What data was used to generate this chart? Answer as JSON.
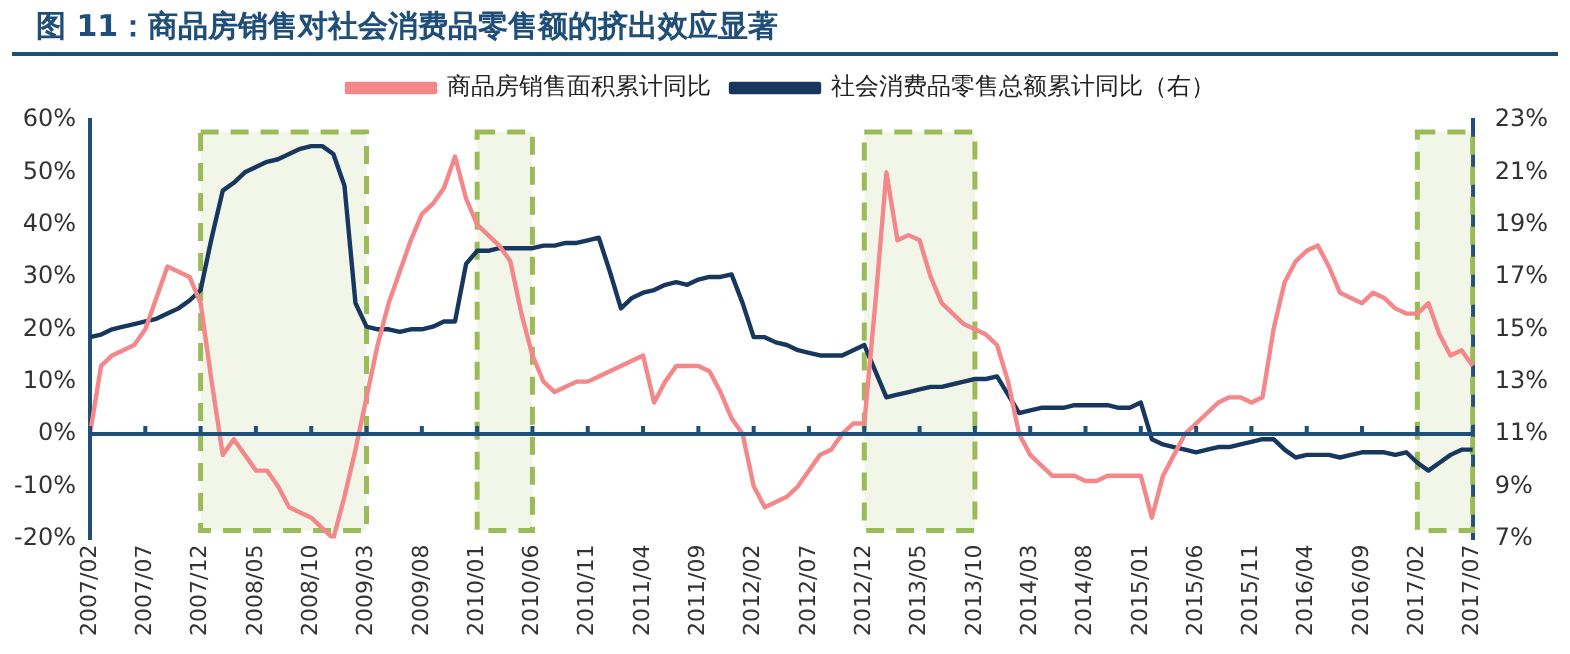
{
  "chart_data": {
    "type": "line",
    "title": "图 11：商品房销售对社会消费品零售额的挤出效应显著",
    "categories": [
      "2007/02",
      null,
      null,
      null,
      null,
      "2007/07",
      null,
      null,
      null,
      null,
      "2007/12",
      null,
      null,
      null,
      null,
      "2008/05",
      null,
      null,
      null,
      null,
      "2008/10",
      null,
      null,
      null,
      null,
      "2009/03",
      null,
      null,
      null,
      null,
      "2009/08",
      null,
      null,
      null,
      null,
      "2010/01",
      null,
      null,
      null,
      null,
      "2010/06",
      null,
      null,
      null,
      null,
      "2010/11",
      null,
      null,
      null,
      null,
      "2011/04",
      null,
      null,
      null,
      null,
      "2011/09",
      null,
      null,
      null,
      null,
      "2012/02",
      null,
      null,
      null,
      null,
      "2012/07",
      null,
      null,
      null,
      null,
      "2012/12",
      null,
      null,
      null,
      null,
      "2013/05",
      null,
      null,
      null,
      null,
      "2013/10",
      null,
      null,
      null,
      null,
      "2014/03",
      null,
      null,
      null,
      null,
      "2014/08",
      null,
      null,
      null,
      null,
      "2015/01",
      null,
      null,
      null,
      null,
      "2015/06",
      null,
      null,
      null,
      null,
      "2015/11",
      null,
      null,
      null,
      null,
      "2016/04",
      null,
      null,
      null,
      null,
      "2016/09",
      null,
      null,
      null,
      null,
      "2017/02",
      null,
      null,
      null,
      null,
      "2017/07"
    ],
    "series": [
      {
        "name": "商品房销售面积累计同比",
        "color": "#f4878a",
        "values": [
          0,
          13,
          15,
          16,
          17,
          20,
          26,
          32,
          31,
          30,
          25,
          10,
          -4,
          -1,
          -4,
          -7,
          -7,
          -10,
          -14,
          -15,
          -16,
          -18,
          -20,
          -12,
          -3,
          7,
          17,
          25,
          31,
          37,
          42,
          44,
          47,
          53,
          45,
          40,
          38,
          36,
          33,
          23,
          15,
          10,
          8,
          9,
          10,
          10,
          11,
          12,
          13,
          14,
          15,
          6,
          10,
          13,
          13,
          13,
          12,
          8,
          3,
          0,
          -10,
          -14,
          -13,
          -12,
          -10,
          -7,
          -4,
          -3,
          0,
          2,
          2,
          25,
          50,
          37,
          38,
          37,
          30,
          25,
          23,
          21,
          20,
          19,
          17,
          10,
          0,
          -4,
          -6,
          -8,
          -8,
          -8,
          -9,
          -9,
          -8,
          -8,
          -8,
          -8,
          -16,
          -8,
          -4,
          0,
          2,
          4,
          6,
          7,
          7,
          6,
          7,
          20,
          29,
          33,
          35,
          36,
          32,
          27,
          26,
          25,
          27,
          26,
          24,
          23,
          23,
          25,
          19,
          15,
          16,
          13
        ]
      },
      {
        "name": "社会消费品零售总额累计同比（右）",
        "color": "#17375e",
        "axis": "y2",
        "values": [
          14.7,
          14.8,
          15,
          15.1,
          15.2,
          15.3,
          15.4,
          15.6,
          15.8,
          16.1,
          16.5,
          18.5,
          20.3,
          20.6,
          21,
          21.2,
          21.4,
          21.5,
          21.7,
          21.9,
          22,
          22,
          21.7,
          20.5,
          16,
          15.1,
          15,
          15,
          14.9,
          15,
          15,
          15.1,
          15.3,
          15.3,
          17.5,
          18,
          18,
          18.1,
          18.1,
          18.1,
          18.1,
          18.2,
          18.2,
          18.3,
          18.3,
          18.4,
          18.5,
          17.2,
          15.8,
          16.2,
          16.4,
          16.5,
          16.7,
          16.8,
          16.7,
          16.9,
          17,
          17,
          17.1,
          16,
          14.7,
          14.7,
          14.5,
          14.4,
          14.2,
          14.1,
          14,
          14,
          14,
          14.2,
          14.4,
          13.4,
          12.4,
          12.5,
          12.6,
          12.7,
          12.8,
          12.8,
          12.9,
          13,
          13.1,
          13.1,
          13.2,
          12.5,
          11.8,
          11.9,
          12,
          12,
          12,
          12.1,
          12.1,
          12.1,
          12.1,
          12,
          12,
          12.2,
          10.8,
          10.6,
          10.5,
          10.4,
          10.3,
          10.4,
          10.5,
          10.5,
          10.6,
          10.7,
          10.8,
          10.8,
          10.4,
          10.1,
          10.2,
          10.2,
          10.2,
          10.1,
          10.2,
          10.3,
          10.3,
          10.3,
          10.2,
          10.3,
          9.9,
          9.6,
          9.9,
          10.2,
          10.4,
          10.4
        ]
      }
    ],
    "ylim": [
      -20,
      60
    ],
    "yticks": [
      {
        "value": -20,
        "label": "-20%"
      },
      {
        "value": -10,
        "label": "-10%"
      },
      {
        "value": 0,
        "label": "0%"
      },
      {
        "value": 10,
        "label": "10%"
      },
      {
        "value": 20,
        "label": "20%"
      },
      {
        "value": 30,
        "label": "30%"
      },
      {
        "value": 40,
        "label": "40%"
      },
      {
        "value": 50,
        "label": "50%"
      },
      {
        "value": 60,
        "label": "60%"
      }
    ],
    "y2lim": [
      7,
      23
    ],
    "y2ticks": [
      {
        "value": 7,
        "label": "7%"
      },
      {
        "value": 9,
        "label": "9%"
      },
      {
        "value": 11,
        "label": "11%"
      },
      {
        "value": 13,
        "label": "13%"
      },
      {
        "value": 15,
        "label": "15%"
      },
      {
        "value": 17,
        "label": "17%"
      },
      {
        "value": 19,
        "label": "19%"
      },
      {
        "value": 21,
        "label": "21%"
      },
      {
        "value": 23,
        "label": "23%"
      }
    ],
    "ref_lines": [
      {
        "axis": "y",
        "value": 0,
        "color": "#1f4e79"
      }
    ],
    "bands": [
      {
        "axis": "x",
        "from": "2007/12",
        "to": "2009/03",
        "color": "#9bbb59"
      },
      {
        "axis": "x",
        "from": "2010/01",
        "to": "2010/06",
        "color": "#9bbb59"
      },
      {
        "axis": "x",
        "from": "2012/12",
        "to": "2013/10",
        "color": "#9bbb59"
      },
      {
        "axis": "x",
        "from": "2017/02",
        "to": "2017/07",
        "color": "#9bbb59"
      }
    ],
    "grid": false,
    "legend": "top",
    "marker": "none",
    "line_style": "solid"
  }
}
